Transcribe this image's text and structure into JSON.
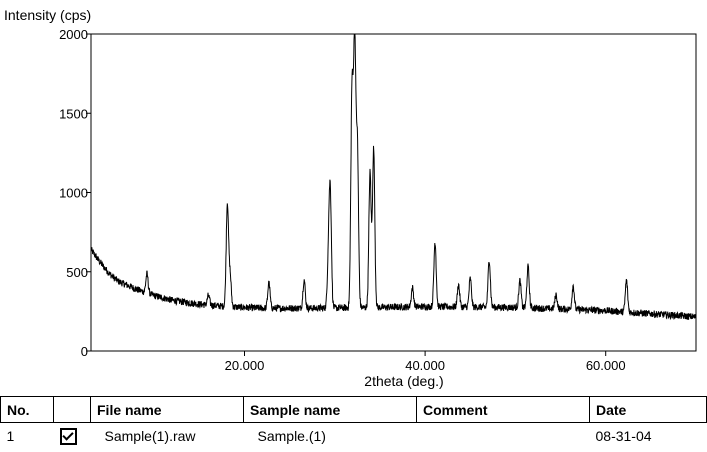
{
  "chart_data": {
    "type": "line",
    "title": "",
    "ylabel": "Intensity (cps)",
    "xlabel": "2theta (deg.)",
    "xlim": [
      3,
      70
    ],
    "ylim": [
      0,
      2000
    ],
    "x_ticks": [
      20,
      40,
      60
    ],
    "x_tick_labels": [
      "20.000",
      "40.000",
      "60.000"
    ],
    "y_ticks": [
      0,
      500,
      1000,
      1500,
      2000
    ],
    "y_tick_labels": [
      "0",
      "500",
      "1000",
      "1500",
      "2000"
    ],
    "grid": false,
    "background": {
      "points": [
        [
          3,
          640
        ],
        [
          4,
          560
        ],
        [
          5,
          490
        ],
        [
          6,
          440
        ],
        [
          8,
          390
        ],
        [
          10,
          350
        ],
        [
          12,
          320
        ],
        [
          15,
          295
        ],
        [
          18,
          280
        ],
        [
          22,
          270
        ],
        [
          28,
          270
        ],
        [
          35,
          275
        ],
        [
          40,
          280
        ],
        [
          50,
          275
        ],
        [
          60,
          255
        ],
        [
          70,
          215
        ]
      ]
    },
    "peaks": [
      {
        "x": 9.2,
        "height": 120
      },
      {
        "x": 16.0,
        "height": 60
      },
      {
        "x": 18.1,
        "height": 650
      },
      {
        "x": 18.4,
        "height": 200
      },
      {
        "x": 22.7,
        "height": 160
      },
      {
        "x": 26.6,
        "height": 180
      },
      {
        "x": 29.3,
        "height": 300
      },
      {
        "x": 29.5,
        "height": 700
      },
      {
        "x": 31.9,
        "height": 1350
      },
      {
        "x": 32.2,
        "height": 1650
      },
      {
        "x": 32.5,
        "height": 1000
      },
      {
        "x": 33.9,
        "height": 850
      },
      {
        "x": 34.3,
        "height": 1000
      },
      {
        "x": 38.6,
        "height": 120
      },
      {
        "x": 41.1,
        "height": 410
      },
      {
        "x": 43.7,
        "height": 140
      },
      {
        "x": 45.0,
        "height": 180
      },
      {
        "x": 47.1,
        "height": 300
      },
      {
        "x": 50.5,
        "height": 170
      },
      {
        "x": 51.4,
        "height": 260
      },
      {
        "x": 54.5,
        "height": 90
      },
      {
        "x": 56.4,
        "height": 150
      },
      {
        "x": 62.3,
        "height": 200
      }
    ],
    "peak_width_deg": 0.18,
    "noise_cps": 22,
    "color": "#000000"
  },
  "table": {
    "headers": {
      "no": "No.",
      "check": "",
      "file": "File name",
      "sample": "Sample name",
      "comment": "Comment",
      "date": "Date"
    },
    "rows": [
      {
        "no": "1",
        "checked": true,
        "file": "Sample(1).raw",
        "sample": "Sample.(1)",
        "comment": "",
        "date": "08-31-04"
      }
    ]
  }
}
